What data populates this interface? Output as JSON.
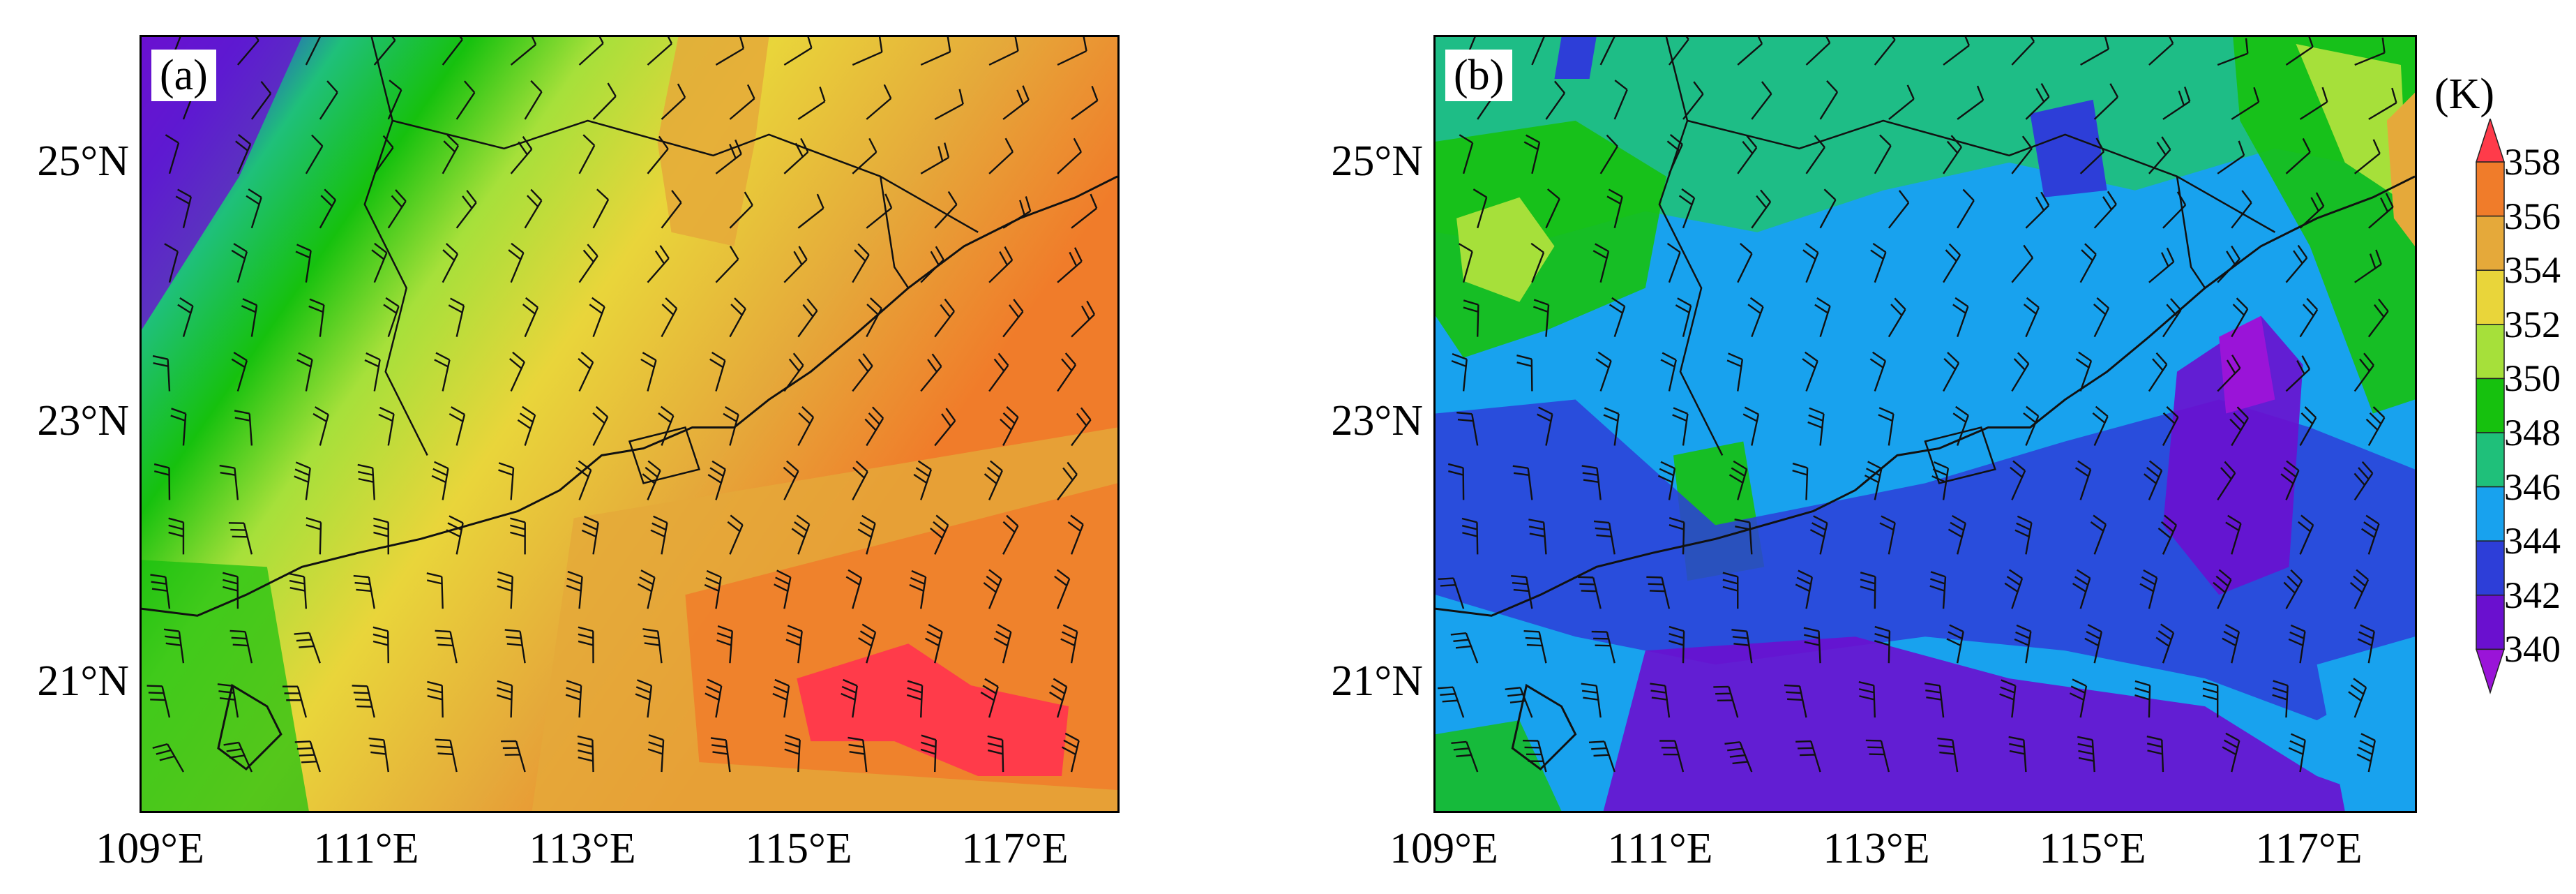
{
  "panels": [
    {
      "id": "a",
      "label": "(a)"
    },
    {
      "id": "b",
      "label": "(b)"
    }
  ],
  "axes": {
    "x_ticks": [
      "109°E",
      "111°E",
      "113°E",
      "115°E",
      "117°E"
    ],
    "y_ticks": [
      "25°N",
      "23°N",
      "21°N"
    ]
  },
  "colorbar": {
    "unit": "(K)",
    "ticks": [
      "358",
      "356",
      "354",
      "352",
      "350",
      "348",
      "346",
      "344",
      "342",
      "340"
    ],
    "colors": [
      "#ff3b4a",
      "#f07c2a",
      "#e5a93a",
      "#e9d53a",
      "#a6e03a",
      "#16c10e",
      "#1fc07a",
      "#18a2ee",
      "#2d3ed8",
      "#6a10cf",
      "#9a14d8"
    ]
  },
  "map": {
    "extent": {
      "lon": [
        109,
        118
      ],
      "lat": [
        20,
        26
      ]
    },
    "features": [
      "wind-barbs",
      "coastline",
      "province-boundaries"
    ]
  }
}
